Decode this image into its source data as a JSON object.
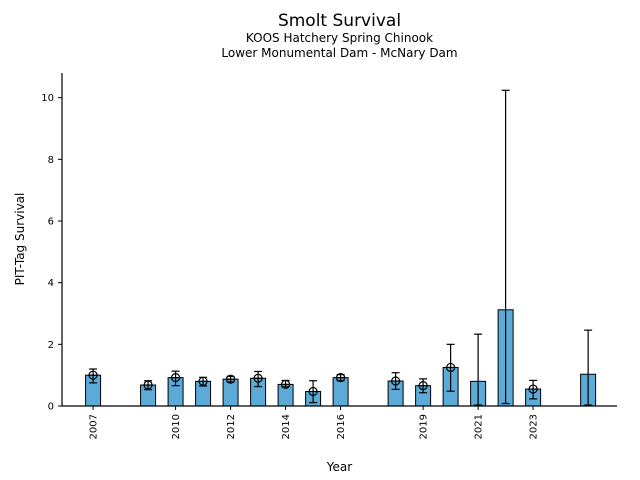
{
  "chart_data": {
    "type": "bar",
    "title": "Smolt Survival",
    "subtitle1": "KOOS Hatchery Spring Chinook",
    "subtitle2": "Lower Monumental Dam - McNary Dam",
    "xlabel": "Year",
    "ylabel": "PIT-Tag Survival",
    "ylim": [
      0,
      10.8
    ],
    "xlim": [
      2005.87,
      2026.05
    ],
    "y_ticks": [
      0,
      2,
      4,
      6,
      8,
      10
    ],
    "x_ticks": [
      2007,
      2010,
      2012,
      2014,
      2016,
      2019,
      2021,
      2023
    ],
    "grid": false,
    "legend": null,
    "bar_color": "#5BAAD7",
    "edge_color": "#000000",
    "error_color": "#000000",
    "series": [
      {
        "year": 2007,
        "value": 1.0,
        "err_lo": 0.75,
        "err_hi": 1.2,
        "marker": true
      },
      {
        "year": 2009,
        "value": 0.68,
        "err_lo": 0.53,
        "err_hi": 0.82,
        "marker": true
      },
      {
        "year": 2010,
        "value": 0.92,
        "err_lo": 0.66,
        "err_hi": 1.13,
        "marker": true
      },
      {
        "year": 2011,
        "value": 0.8,
        "err_lo": 0.65,
        "err_hi": 0.93,
        "marker": true
      },
      {
        "year": 2012,
        "value": 0.87,
        "err_lo": 0.78,
        "err_hi": 0.96,
        "marker": true
      },
      {
        "year": 2013,
        "value": 0.9,
        "err_lo": 0.63,
        "err_hi": 1.12,
        "marker": true
      },
      {
        "year": 2014,
        "value": 0.7,
        "err_lo": 0.62,
        "err_hi": 0.83,
        "marker": true
      },
      {
        "year": 2015,
        "value": 0.47,
        "err_lo": 0.11,
        "err_hi": 0.82,
        "marker": true
      },
      {
        "year": 2016,
        "value": 0.92,
        "err_lo": 0.82,
        "err_hi": 1.02,
        "marker": true
      },
      {
        "year": 2018,
        "value": 0.81,
        "err_lo": 0.54,
        "err_hi": 1.08,
        "marker": true
      },
      {
        "year": 2019,
        "value": 0.66,
        "err_lo": 0.43,
        "err_hi": 0.88,
        "marker": true
      },
      {
        "year": 2020,
        "value": 1.25,
        "err_lo": 0.48,
        "err_hi": 2.0,
        "marker": true
      },
      {
        "year": 2021,
        "value": 0.8,
        "err_lo": 0.03,
        "err_hi": 2.33,
        "marker": false
      },
      {
        "year": 2022,
        "value": 3.12,
        "err_lo": 0.08,
        "err_hi": 10.24,
        "marker": false
      },
      {
        "year": 2023,
        "value": 0.55,
        "err_lo": 0.23,
        "err_hi": 0.83,
        "marker": true
      },
      {
        "year": 2025,
        "value": 1.03,
        "err_lo": 0.03,
        "err_hi": 2.46,
        "marker": false
      }
    ]
  }
}
